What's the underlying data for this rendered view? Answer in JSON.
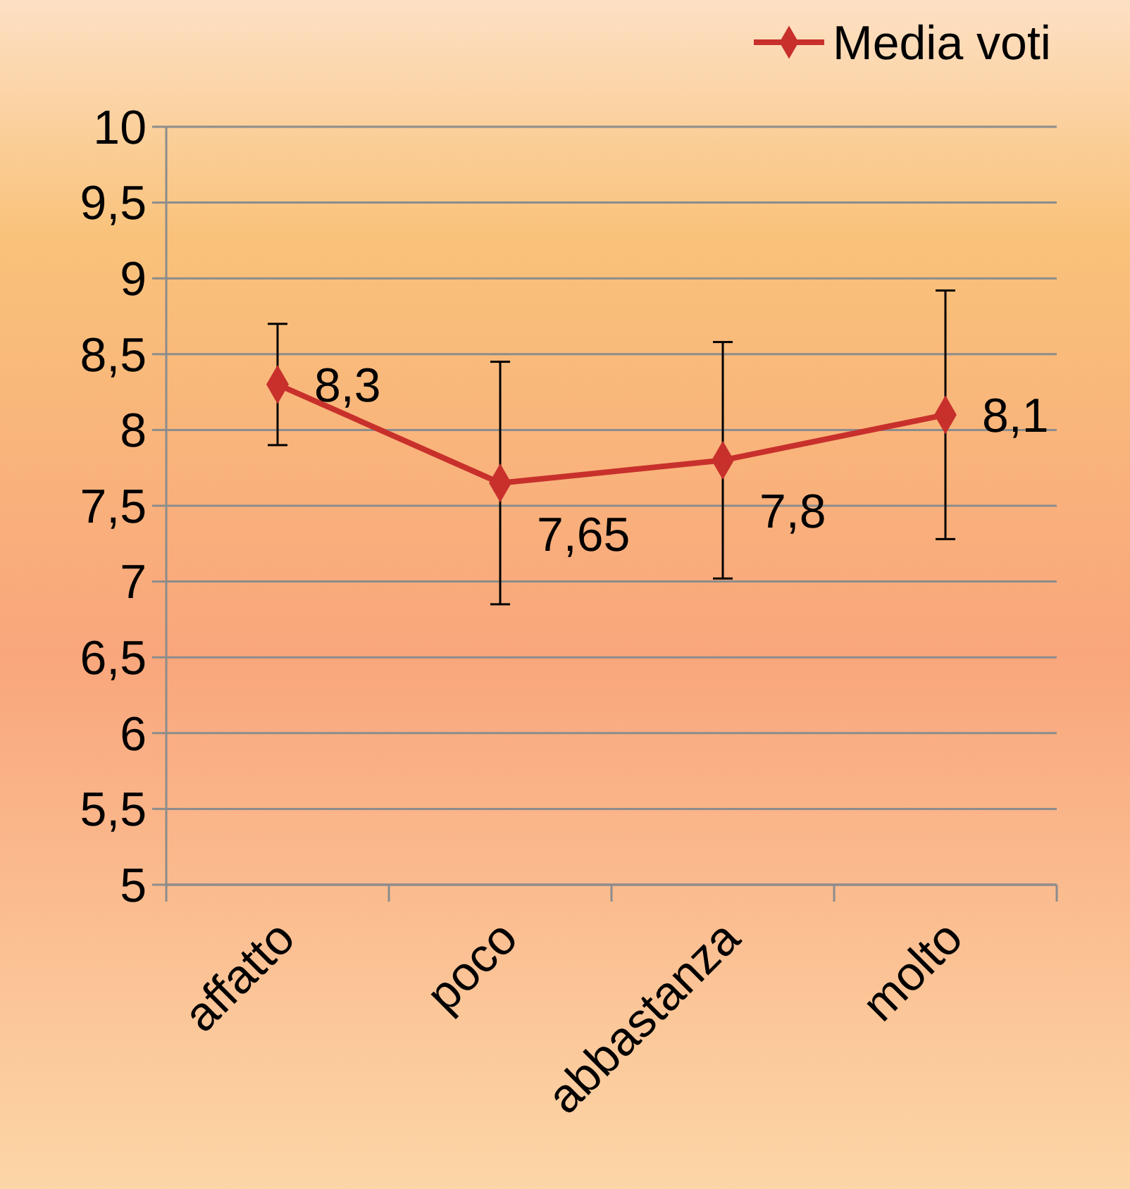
{
  "chart_data": {
    "type": "line",
    "categories": [
      "affatto",
      "poco",
      "abbastanza",
      "molto"
    ],
    "series": [
      {
        "name": "Media voti",
        "color": "#c8302c",
        "values": [
          8.3,
          7.65,
          7.8,
          8.1
        ],
        "errors": [
          0.4,
          0.8,
          0.78,
          0.82
        ],
        "value_labels": [
          "8,3",
          "7,65",
          "7,8",
          "8,1"
        ]
      }
    ],
    "ylim": [
      5,
      10
    ],
    "yticks": [
      5,
      {
        "value": 5.5,
        "label": "5,5"
      },
      6,
      {
        "value": 6.5,
        "label": "6,5"
      },
      7,
      {
        "value": 7.5,
        "label": "7,5"
      },
      8,
      {
        "value": 8.5,
        "label": "8,5"
      },
      9,
      {
        "value": 9.5,
        "label": "9,5"
      },
      10
    ],
    "grid": "y",
    "legend": "top right",
    "marker": "diamond",
    "line_style": "solid"
  }
}
